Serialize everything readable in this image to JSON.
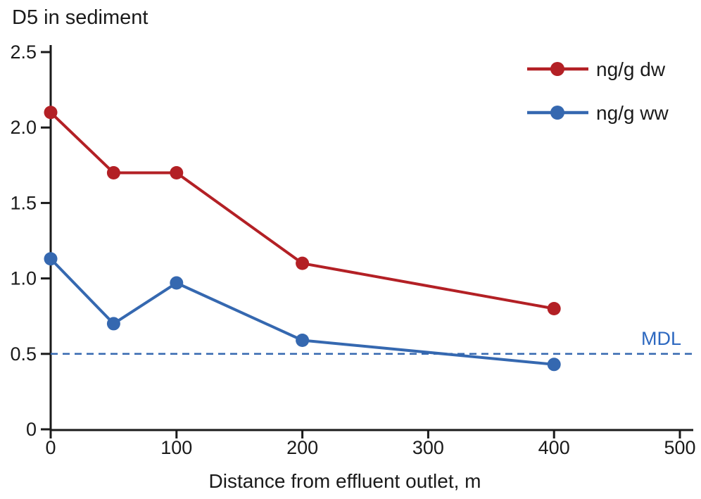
{
  "title": "D5 in sediment",
  "colors": {
    "series_red": "#b32025",
    "series_blue": "#3568b0",
    "mdl_blue": "#2d68c0",
    "axis": "#1a1a1a",
    "text": "#1a1a1a",
    "background": "#ffffff"
  },
  "legend": {
    "position": "top-right",
    "items": [
      {
        "label": "ng/g dw",
        "color": "#b32025"
      },
      {
        "label": "ng/g ww",
        "color": "#3568b0"
      }
    ]
  },
  "reference_line": {
    "label": "MDL",
    "value": 0.5,
    "style": "dashed",
    "color": "#3568b0",
    "label_color": "#2d68c0"
  },
  "chart_data": {
    "type": "line",
    "title": "D5 in sediment",
    "xlabel": "Distance from effluent outlet, m",
    "ylabel": "",
    "x": [
      0,
      50,
      100,
      200,
      400
    ],
    "series": [
      {
        "name": "ng/g dw",
        "color": "#b32025",
        "values": [
          2.1,
          1.7,
          1.7,
          1.1,
          0.8
        ]
      },
      {
        "name": "ng/g ww",
        "color": "#3568b0",
        "values": [
          1.13,
          0.7,
          0.97,
          0.59,
          0.43
        ]
      }
    ],
    "xlim": [
      0,
      500
    ],
    "ylim": [
      0,
      2.5
    ],
    "xticks": [
      0,
      100,
      200,
      300,
      400,
      500
    ],
    "xtick_labels": [
      "0",
      "100",
      "200",
      "300",
      "400",
      "500"
    ],
    "yticks": [
      0,
      0.5,
      1.0,
      1.5,
      2.0,
      2.5
    ],
    "ytick_labels": [
      "0",
      "0.5",
      "1.0",
      "1.5",
      "2.0",
      "2.5"
    ],
    "grid": false,
    "legend_position": "top-right",
    "reference_line": {
      "label": "MDL",
      "value": 0.5,
      "style": "dashed"
    }
  }
}
